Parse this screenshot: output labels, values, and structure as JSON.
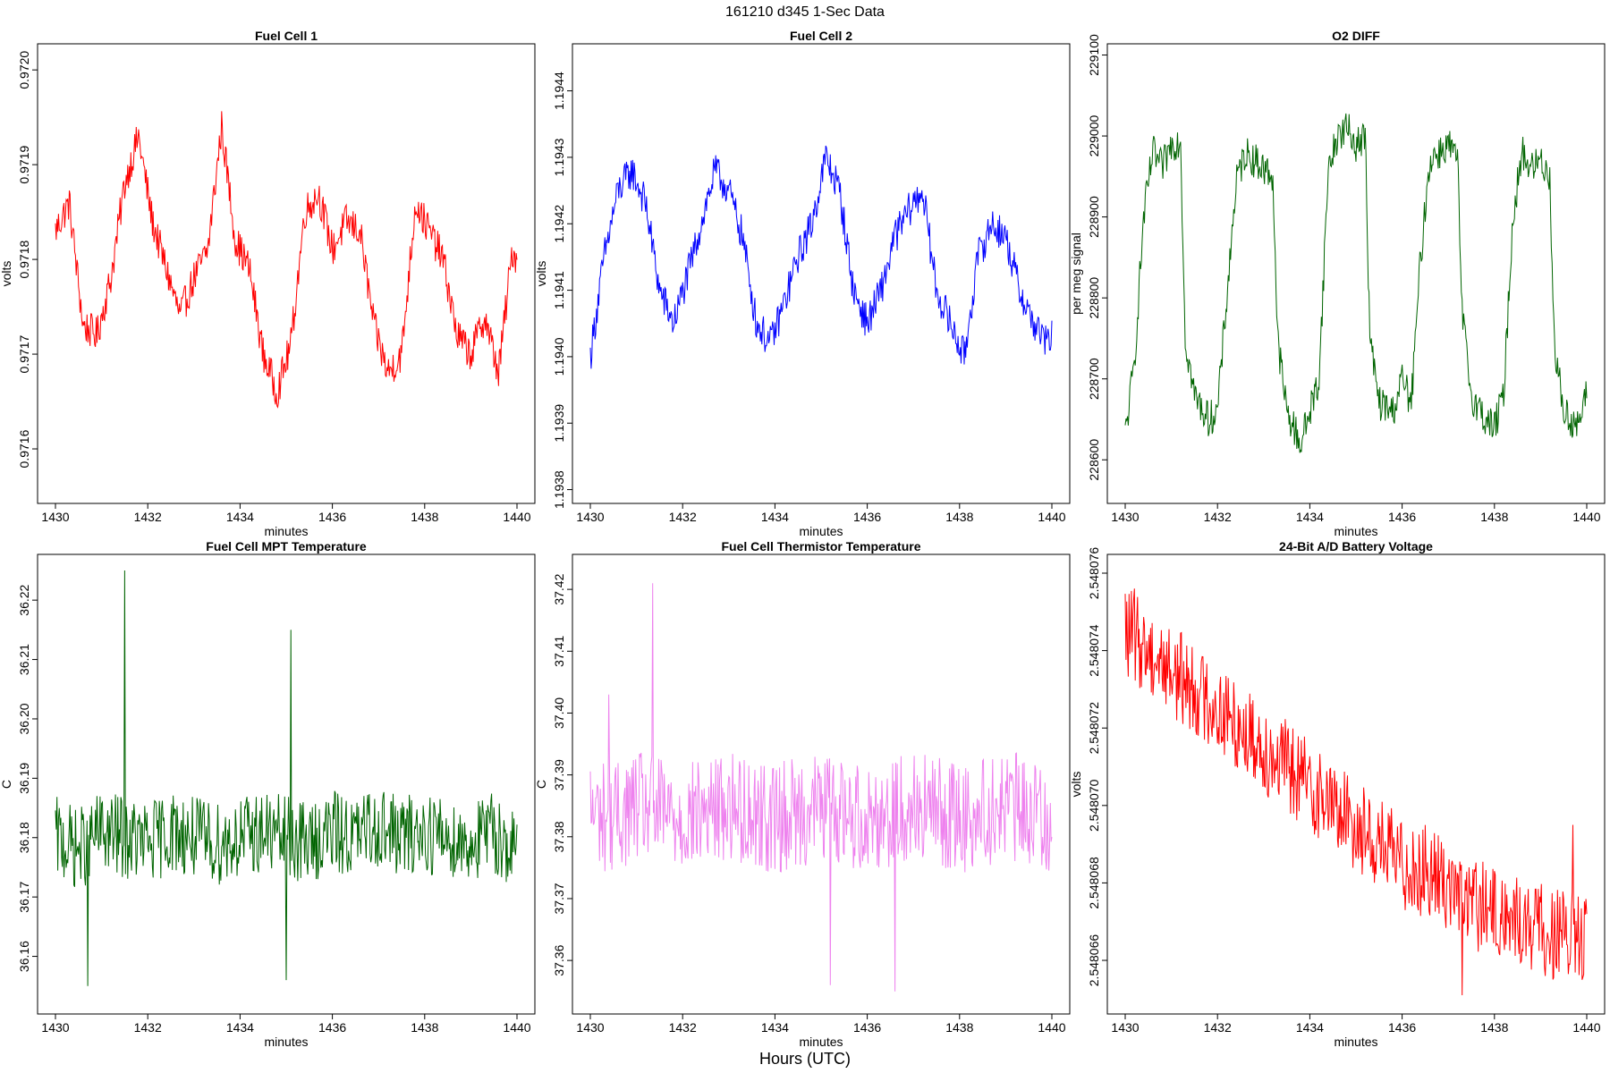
{
  "page": {
    "title": "161210   d345   1-Sec Data",
    "footer": "Hours (UTC)"
  },
  "chart_data": [
    {
      "type": "line",
      "title": "Fuel Cell 1",
      "xlabel": "minutes",
      "ylabel": "volts",
      "color": "#ff0000",
      "xlim": [
        1430,
        1440
      ],
      "ylim": [
        0.97155,
        0.97202
      ],
      "xticks": [
        "1430",
        "1432",
        "1434",
        "1436",
        "1438",
        "1440"
      ],
      "yticks": [
        "0.9716",
        "0.9717",
        "0.9718",
        "0.9719",
        "0.9720"
      ],
      "series": [
        {
          "x": [
            1430.0,
            1430.3,
            1430.6,
            1430.9,
            1431.2,
            1431.5,
            1431.8,
            1432.1,
            1432.4,
            1432.7,
            1433.0,
            1433.3,
            1433.6,
            1433.9,
            1434.2,
            1434.5,
            1434.8,
            1435.1,
            1435.4,
            1435.7,
            1436.0,
            1436.3,
            1436.6,
            1436.9,
            1437.2,
            1437.5,
            1437.8,
            1438.1,
            1438.4,
            1438.7,
            1439.0,
            1439.3,
            1439.6,
            1439.9,
            1440.0
          ],
          "y": [
            0.97183,
            0.97186,
            0.97173,
            0.97172,
            0.97178,
            0.97188,
            0.97193,
            0.97184,
            0.97179,
            0.97174,
            0.97178,
            0.97181,
            0.97194,
            0.97182,
            0.97179,
            0.9717,
            0.97166,
            0.97171,
            0.97185,
            0.97187,
            0.97181,
            0.97184,
            0.97183,
            0.97173,
            0.97168,
            0.9717,
            0.97186,
            0.97183,
            0.9718,
            0.97172,
            0.9717,
            0.97174,
            0.97168,
            0.97181,
            0.9718
          ]
        }
      ]
    },
    {
      "type": "line",
      "title": "Fuel Cell 2",
      "xlabel": "minutes",
      "ylabel": "volts",
      "color": "#0000ff",
      "xlim": [
        1430,
        1440
      ],
      "ylim": [
        1.19379,
        1.19446
      ],
      "xticks": [
        "1430",
        "1432",
        "1434",
        "1436",
        "1438",
        "1440"
      ],
      "yticks": [
        "1.1938",
        "1.1939",
        "1.1940",
        "1.1941",
        "1.1942",
        "1.1943",
        "1.1944"
      ],
      "series": [
        {
          "x": [
            1430.0,
            1430.3,
            1430.6,
            1430.9,
            1431.2,
            1431.5,
            1431.8,
            1432.1,
            1432.4,
            1432.7,
            1433.0,
            1433.3,
            1433.6,
            1433.9,
            1434.2,
            1434.5,
            1434.8,
            1435.1,
            1435.4,
            1435.7,
            1436.0,
            1436.3,
            1436.6,
            1436.9,
            1437.2,
            1437.5,
            1437.8,
            1438.1,
            1438.4,
            1438.7,
            1439.0,
            1439.3,
            1439.6,
            1439.9,
            1440.0
          ],
          "y": [
            1.194,
            1.19415,
            1.19425,
            1.19428,
            1.19423,
            1.1941,
            1.19405,
            1.19412,
            1.1942,
            1.19428,
            1.19425,
            1.19418,
            1.19405,
            1.19402,
            1.19408,
            1.19415,
            1.1942,
            1.1943,
            1.19425,
            1.1941,
            1.19405,
            1.1941,
            1.19418,
            1.19422,
            1.19425,
            1.1941,
            1.19405,
            1.194,
            1.19415,
            1.1942,
            1.19418,
            1.1941,
            1.19405,
            1.19402,
            1.19403
          ]
        }
      ]
    },
    {
      "type": "line",
      "title": "O2 DIFF",
      "xlabel": "minutes",
      "ylabel": "per meg signal",
      "color": "#006400",
      "xlim": [
        1430,
        1440
      ],
      "ylim": [
        228555,
        229105
      ],
      "xticks": [
        "1430",
        "1432",
        "1434",
        "1436",
        "1438",
        "1440"
      ],
      "yticks": [
        "228600",
        "228700",
        "228800",
        "228900",
        "229000",
        "229100"
      ],
      "series": [
        {
          "x": [
            1430.0,
            1430.2,
            1430.4,
            1430.6,
            1430.8,
            1431.0,
            1431.2,
            1431.3,
            1431.5,
            1431.8,
            1432.0,
            1432.2,
            1432.4,
            1432.6,
            1432.8,
            1433.0,
            1433.2,
            1433.3,
            1433.5,
            1433.8,
            1434.0,
            1434.2,
            1434.4,
            1434.6,
            1434.8,
            1435.0,
            1435.2,
            1435.3,
            1435.5,
            1435.8,
            1436.0,
            1436.2,
            1436.4,
            1436.6,
            1436.8,
            1437.0,
            1437.2,
            1437.3,
            1437.5,
            1437.8,
            1438.0,
            1438.2,
            1438.4,
            1438.6,
            1438.8,
            1439.0,
            1439.2,
            1439.3,
            1439.5,
            1439.8,
            1440.0
          ],
          "y": [
            228630,
            228720,
            228900,
            228980,
            228960,
            228990,
            228995,
            228750,
            228680,
            228650,
            228660,
            228800,
            228940,
            228980,
            228970,
            228960,
            228950,
            228750,
            228660,
            228620,
            228660,
            228700,
            228960,
            229000,
            229010,
            228990,
            229000,
            228750,
            228670,
            228660,
            228700,
            228670,
            228850,
            228970,
            228980,
            228990,
            228970,
            228780,
            228680,
            228650,
            228640,
            228680,
            228900,
            228980,
            228960,
            228970,
            228950,
            228740,
            228660,
            228640,
            228680
          ]
        }
      ]
    },
    {
      "type": "line",
      "title": "Fuel Cell MPT Temperature",
      "xlabel": "minutes",
      "ylabel": "C",
      "color": "#006400",
      "xlim": [
        1430,
        1440
      ],
      "ylim": [
        36.1515,
        36.2265
      ],
      "xticks": [
        "1430",
        "1432",
        "1434",
        "1436",
        "1438",
        "1440"
      ],
      "yticks": [
        "36.16",
        "36.17",
        "36.18",
        "36.19",
        "36.20",
        "36.21",
        "36.22"
      ],
      "series": [
        {
          "x": [
            1430.0,
            1430.5,
            1431.0,
            1431.5,
            1432.0,
            1432.5,
            1433.0,
            1433.5,
            1434.0,
            1434.5,
            1435.0,
            1435.5,
            1436.0,
            1436.5,
            1437.0,
            1437.5,
            1438.0,
            1438.5,
            1439.0,
            1439.5,
            1440.0
          ],
          "y": [
            36.18,
            36.178,
            36.181,
            36.18,
            36.179,
            36.181,
            36.18,
            36.179,
            36.18,
            36.181,
            36.18,
            36.179,
            36.181,
            36.18,
            36.182,
            36.18,
            36.181,
            36.18,
            36.179,
            36.181,
            36.177
          ]
        }
      ],
      "noise": 0.007,
      "spikes": [
        {
          "x": 1431.5,
          "y": 36.225
        },
        {
          "x": 1435.1,
          "y": 36.215
        },
        {
          "x": 1430.7,
          "y": 36.155
        },
        {
          "x": 1435.0,
          "y": 36.156
        }
      ]
    },
    {
      "type": "line",
      "title": "Fuel Cell Thermistor Temperature",
      "xlabel": "minutes",
      "ylabel": "C",
      "color": "#ee82ee",
      "xlim": [
        1430,
        1440
      ],
      "ylim": [
        37.3525,
        37.4245
      ],
      "xticks": [
        "1430",
        "1432",
        "1434",
        "1436",
        "1438",
        "1440"
      ],
      "yticks": [
        "37.36",
        "37.37",
        "37.38",
        "37.39",
        "37.40",
        "37.41",
        "37.42"
      ],
      "series": [
        {
          "x": [
            1430.0,
            1430.5,
            1431.0,
            1431.5,
            1432.0,
            1432.5,
            1433.0,
            1433.5,
            1434.0,
            1434.5,
            1435.0,
            1435.5,
            1436.0,
            1436.5,
            1437.0,
            1437.5,
            1438.0,
            1438.5,
            1439.0,
            1439.5,
            1440.0
          ],
          "y": [
            37.384,
            37.383,
            37.385,
            37.384,
            37.383,
            37.384,
            37.385,
            37.384,
            37.383,
            37.384,
            37.385,
            37.384,
            37.383,
            37.384,
            37.385,
            37.384,
            37.383,
            37.384,
            37.385,
            37.384,
            37.383
          ]
        }
      ],
      "noise": 0.009,
      "spikes": [
        {
          "x": 1431.35,
          "y": 37.421
        },
        {
          "x": 1436.6,
          "y": 37.355
        },
        {
          "x": 1435.2,
          "y": 37.356
        },
        {
          "x": 1430.4,
          "y": 37.403
        }
      ]
    },
    {
      "type": "line",
      "title": "24-Bit A/D Battery Voltage",
      "xlabel": "minutes",
      "ylabel": "volts",
      "color": "#ff0000",
      "xlim": [
        1430,
        1440
      ],
      "ylim": [
        2.5480648,
        2.5480763
      ],
      "xticks": [
        "1430",
        "1432",
        "1434",
        "1436",
        "1438",
        "1440"
      ],
      "yticks": [
        "2.548066",
        "2.548068",
        "2.548070",
        "2.548072",
        "2.548074",
        "2.548076"
      ],
      "series": [
        {
          "x": [
            1430.0,
            1430.5,
            1431.0,
            1431.5,
            1432.0,
            1432.5,
            1433.0,
            1433.5,
            1434.0,
            1434.5,
            1435.0,
            1435.5,
            1436.0,
            1436.5,
            1437.0,
            1437.5,
            1438.0,
            1438.5,
            1439.0,
            1439.5,
            1440.0
          ],
          "y": [
            2.5480745,
            2.548074,
            2.5480735,
            2.548073,
            2.5480725,
            2.548072,
            2.5480715,
            2.548071,
            2.5480705,
            2.54807,
            2.5480695,
            2.548069,
            2.5480685,
            2.5480683,
            2.548068,
            2.5480675,
            2.5480672,
            2.548067,
            2.5480668,
            2.5480666,
            2.5480665
          ]
        }
      ],
      "noise": 1.2e-06,
      "spikes": [
        {
          "x": 1430.2,
          "y": 2.5480756
        },
        {
          "x": 1437.3,
          "y": 2.5480651
        },
        {
          "x": 1439.9,
          "y": 2.5480655
        },
        {
          "x": 1439.7,
          "y": 2.5480695
        }
      ]
    }
  ]
}
